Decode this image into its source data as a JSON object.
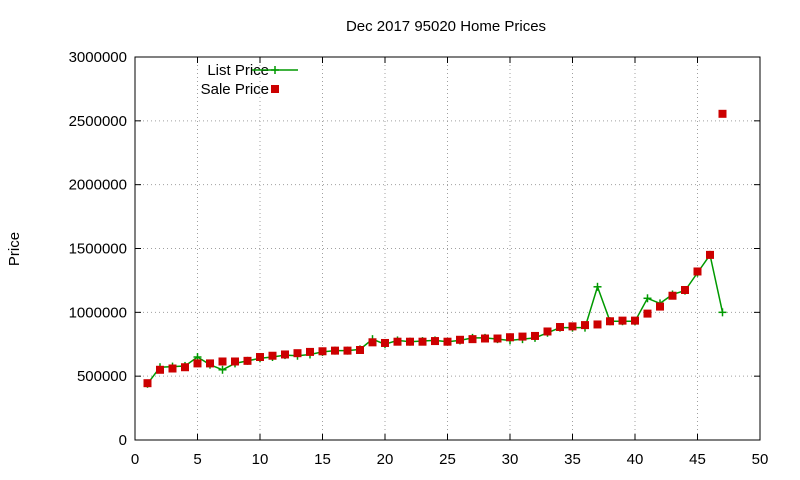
{
  "chart_data": {
    "type": "line",
    "title": "Dec 2017 95020 Home Prices",
    "xlabel": "",
    "ylabel": "Price",
    "xlim": [
      0,
      50
    ],
    "ylim": [
      0,
      3000000
    ],
    "x_ticks": [
      0,
      5,
      10,
      15,
      20,
      25,
      30,
      35,
      40,
      45,
      50
    ],
    "y_ticks": [
      0,
      500000,
      1000000,
      1500000,
      2000000,
      2500000,
      3000000
    ],
    "grid": true,
    "legend_position": "top-left",
    "x": [
      1,
      2,
      3,
      4,
      5,
      6,
      7,
      8,
      9,
      10,
      11,
      12,
      13,
      14,
      15,
      16,
      17,
      18,
      19,
      20,
      21,
      22,
      23,
      24,
      25,
      26,
      27,
      28,
      29,
      30,
      31,
      32,
      33,
      34,
      35,
      36,
      37,
      38,
      39,
      40,
      41,
      42,
      43,
      44,
      45,
      46,
      47
    ],
    "series": [
      {
        "name": "List Price",
        "style": "line-plus",
        "color": "#009900",
        "values": [
          440000,
          570000,
          575000,
          580000,
          650000,
          590000,
          550000,
          600000,
          620000,
          640000,
          650000,
          665000,
          660000,
          670000,
          690000,
          700000,
          700000,
          710000,
          790000,
          750000,
          780000,
          770000,
          775000,
          780000,
          770000,
          780000,
          800000,
          800000,
          790000,
          780000,
          790000,
          800000,
          840000,
          880000,
          880000,
          880000,
          1200000,
          930000,
          930000,
          930000,
          1110000,
          1070000,
          1140000,
          1170000,
          1310000,
          1450000,
          1000000
        ]
      },
      {
        "name": "Sale Price",
        "style": "square-marker",
        "color": "#cc0000",
        "values": [
          445000,
          550000,
          560000,
          570000,
          600000,
          600000,
          615000,
          615000,
          620000,
          650000,
          660000,
          670000,
          680000,
          690000,
          695000,
          700000,
          700000,
          705000,
          765000,
          760000,
          770000,
          770000,
          770000,
          775000,
          770000,
          785000,
          790000,
          795000,
          795000,
          805000,
          810000,
          815000,
          850000,
          885000,
          890000,
          900000,
          905000,
          930000,
          935000,
          935000,
          990000,
          1045000,
          1130000,
          1175000,
          1320000,
          1450000,
          2555000
        ]
      }
    ]
  }
}
